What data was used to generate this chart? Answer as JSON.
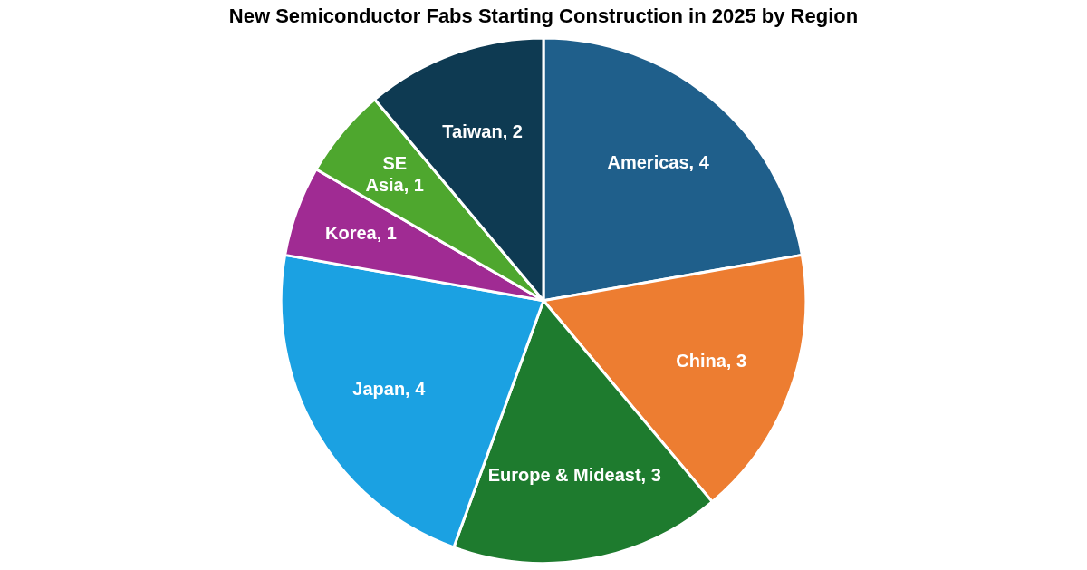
{
  "chart_data": {
    "type": "pie",
    "title": "New Semiconductor Fabs Starting Construction in 2025 by Region",
    "categories": [
      "Americas",
      "China",
      "Europe & Mideast",
      "Japan",
      "Korea",
      "SE Asia",
      "Taiwan"
    ],
    "values": [
      4,
      3,
      3,
      4,
      1,
      1,
      2
    ],
    "colors": [
      "#1f5f8b",
      "#ed7d31",
      "#1e7b2e",
      "#1ba1e2",
      "#a02b93",
      "#4ea72e",
      "#0e3a52"
    ],
    "value_labels": [
      ", 4",
      ", 3",
      ", 3",
      ", 4",
      ", 1",
      ", 1",
      ", 2"
    ],
    "legend": false
  }
}
